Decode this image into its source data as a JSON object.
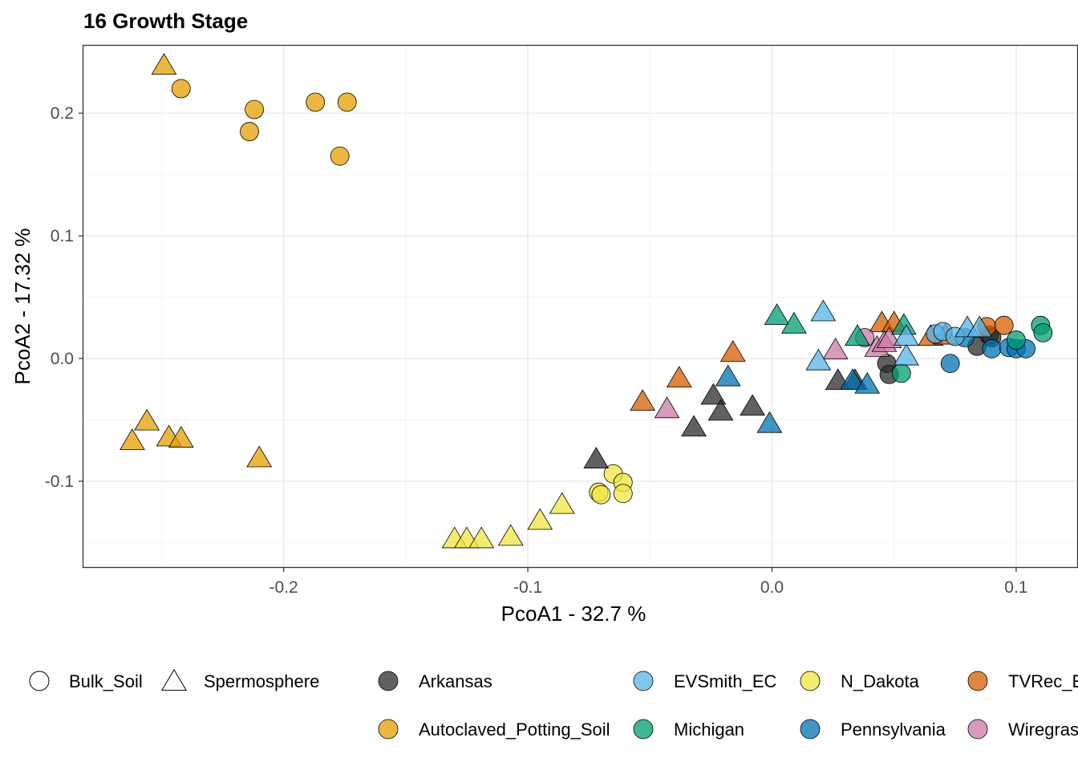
{
  "chart_data": {
    "type": "scatter",
    "title": "16 Growth Stage",
    "xlabel": "PcoA1 - 32.7 %",
    "ylabel": "PcoA2 - 17.32 %",
    "xlim": [
      -0.282,
      0.125
    ],
    "ylim": [
      -0.17,
      0.255
    ],
    "x_ticks": [
      -0.2,
      -0.1,
      0.0,
      0.1
    ],
    "x_tick_labels": [
      "-0.2",
      "-0.1",
      "0.0",
      "0.1"
    ],
    "y_ticks": [
      -0.1,
      0.0,
      0.1,
      0.2
    ],
    "y_tick_labels": [
      "-0.1",
      "0.0",
      "0.1",
      "0.2"
    ],
    "grid": true,
    "legend_position": "bottom",
    "shape_legend": [
      {
        "name": "Bulk_Soil",
        "shape": "circle"
      },
      {
        "name": "Spermosphere",
        "shape": "triangle"
      }
    ],
    "color_legend": [
      {
        "name": "Arkansas",
        "color": "#2b2b2b"
      },
      {
        "name": "Autoclaved_Potting_Soil",
        "color": "#e69f00"
      },
      {
        "name": "EVSmith_EC",
        "color": "#56b4e9"
      },
      {
        "name": "Michigan",
        "color": "#009e73"
      },
      {
        "name": "N_Dakota",
        "color": "#f0e442"
      },
      {
        "name": "Pennsylvania",
        "color": "#0072b2"
      },
      {
        "name": "TVRec_E",
        "color": "#d55e00"
      },
      {
        "name": "Wiregras",
        "color": "#cc79a7"
      }
    ],
    "series": [
      {
        "name": "Autoclaved_Potting_Soil",
        "color": "#e69f00",
        "points": [
          {
            "x": -0.249,
            "y": 0.238,
            "shape": "triangle"
          },
          {
            "x": -0.242,
            "y": 0.22,
            "shape": "circle"
          },
          {
            "x": -0.212,
            "y": 0.203,
            "shape": "circle"
          },
          {
            "x": -0.214,
            "y": 0.185,
            "shape": "circle"
          },
          {
            "x": -0.187,
            "y": 0.209,
            "shape": "circle"
          },
          {
            "x": -0.174,
            "y": 0.209,
            "shape": "circle"
          },
          {
            "x": -0.177,
            "y": 0.165,
            "shape": "circle"
          },
          {
            "x": -0.256,
            "y": -0.052,
            "shape": "triangle"
          },
          {
            "x": -0.262,
            "y": -0.068,
            "shape": "triangle"
          },
          {
            "x": -0.247,
            "y": -0.065,
            "shape": "triangle"
          },
          {
            "x": -0.242,
            "y": -0.066,
            "shape": "triangle"
          },
          {
            "x": -0.21,
            "y": -0.082,
            "shape": "triangle"
          }
        ]
      },
      {
        "name": "N_Dakota",
        "color": "#f0e442",
        "points": [
          {
            "x": -0.13,
            "y": -0.148,
            "shape": "triangle"
          },
          {
            "x": -0.125,
            "y": -0.148,
            "shape": "triangle"
          },
          {
            "x": -0.119,
            "y": -0.148,
            "shape": "triangle"
          },
          {
            "x": -0.107,
            "y": -0.146,
            "shape": "triangle"
          },
          {
            "x": -0.095,
            "y": -0.133,
            "shape": "triangle"
          },
          {
            "x": -0.086,
            "y": -0.12,
            "shape": "triangle"
          },
          {
            "x": -0.065,
            "y": -0.094,
            "shape": "circle"
          },
          {
            "x": -0.061,
            "y": -0.101,
            "shape": "circle"
          },
          {
            "x": -0.071,
            "y": -0.109,
            "shape": "circle"
          },
          {
            "x": -0.07,
            "y": -0.111,
            "shape": "circle"
          },
          {
            "x": -0.061,
            "y": -0.11,
            "shape": "circle"
          }
        ]
      },
      {
        "name": "Arkansas",
        "color": "#2b2b2b",
        "points": [
          {
            "x": -0.072,
            "y": -0.083,
            "shape": "triangle"
          },
          {
            "x": -0.032,
            "y": -0.057,
            "shape": "triangle"
          },
          {
            "x": -0.024,
            "y": -0.031,
            "shape": "triangle"
          },
          {
            "x": -0.021,
            "y": -0.044,
            "shape": "triangle"
          },
          {
            "x": -0.008,
            "y": -0.04,
            "shape": "triangle"
          },
          {
            "x": 0.027,
            "y": -0.019,
            "shape": "triangle"
          },
          {
            "x": 0.034,
            "y": -0.019,
            "shape": "triangle"
          },
          {
            "x": 0.047,
            "y": -0.004,
            "shape": "circle"
          },
          {
            "x": 0.048,
            "y": -0.013,
            "shape": "circle"
          },
          {
            "x": 0.084,
            "y": 0.01,
            "shape": "circle"
          },
          {
            "x": 0.089,
            "y": 0.019,
            "shape": "circle"
          },
          {
            "x": 0.09,
            "y": 0.017,
            "shape": "circle"
          }
        ]
      },
      {
        "name": "TVRec_E",
        "color": "#d55e00",
        "points": [
          {
            "x": -0.053,
            "y": -0.036,
            "shape": "triangle"
          },
          {
            "x": -0.038,
            "y": -0.017,
            "shape": "triangle"
          },
          {
            "x": -0.016,
            "y": 0.004,
            "shape": "triangle"
          },
          {
            "x": 0.045,
            "y": 0.028,
            "shape": "triangle"
          },
          {
            "x": 0.05,
            "y": 0.028,
            "shape": "triangle"
          },
          {
            "x": 0.065,
            "y": 0.017,
            "shape": "triangle"
          },
          {
            "x": 0.071,
            "y": 0.018,
            "shape": "triangle"
          },
          {
            "x": 0.088,
            "y": 0.026,
            "shape": "circle"
          },
          {
            "x": 0.095,
            "y": 0.027,
            "shape": "circle"
          }
        ]
      },
      {
        "name": "Wiregras",
        "color": "#cc79a7",
        "points": [
          {
            "x": -0.043,
            "y": -0.042,
            "shape": "triangle"
          },
          {
            "x": 0.026,
            "y": 0.006,
            "shape": "triangle"
          },
          {
            "x": 0.043,
            "y": 0.008,
            "shape": "triangle"
          },
          {
            "x": 0.046,
            "y": 0.012,
            "shape": "triangle"
          },
          {
            "x": 0.048,
            "y": 0.015,
            "shape": "triangle"
          },
          {
            "x": 0.038,
            "y": 0.017,
            "shape": "circle"
          }
        ]
      },
      {
        "name": "Pennsylvania",
        "color": "#0072b2",
        "points": [
          {
            "x": -0.018,
            "y": -0.016,
            "shape": "triangle"
          },
          {
            "x": -0.001,
            "y": -0.054,
            "shape": "triangle"
          },
          {
            "x": 0.033,
            "y": -0.019,
            "shape": "triangle"
          },
          {
            "x": 0.039,
            "y": -0.022,
            "shape": "triangle"
          },
          {
            "x": 0.073,
            "y": -0.004,
            "shape": "circle"
          },
          {
            "x": 0.079,
            "y": 0.017,
            "shape": "circle"
          },
          {
            "x": 0.09,
            "y": 0.008,
            "shape": "circle"
          },
          {
            "x": 0.097,
            "y": 0.009,
            "shape": "circle"
          },
          {
            "x": 0.1,
            "y": 0.008,
            "shape": "circle"
          },
          {
            "x": 0.104,
            "y": 0.008,
            "shape": "circle"
          }
        ]
      },
      {
        "name": "Michigan",
        "color": "#009e73",
        "points": [
          {
            "x": 0.002,
            "y": 0.034,
            "shape": "triangle"
          },
          {
            "x": 0.009,
            "y": 0.027,
            "shape": "triangle"
          },
          {
            "x": 0.035,
            "y": 0.017,
            "shape": "triangle"
          },
          {
            "x": 0.054,
            "y": 0.026,
            "shape": "triangle"
          },
          {
            "x": 0.053,
            "y": -0.012,
            "shape": "circle"
          },
          {
            "x": 0.1,
            "y": 0.015,
            "shape": "circle"
          },
          {
            "x": 0.11,
            "y": 0.027,
            "shape": "circle"
          },
          {
            "x": 0.111,
            "y": 0.021,
            "shape": "circle"
          }
        ]
      },
      {
        "name": "EVSmith_EC",
        "color": "#56b4e9",
        "points": [
          {
            "x": 0.021,
            "y": 0.037,
            "shape": "triangle"
          },
          {
            "x": 0.019,
            "y": -0.003,
            "shape": "triangle"
          },
          {
            "x": 0.055,
            "y": 0.001,
            "shape": "triangle"
          },
          {
            "x": 0.055,
            "y": 0.017,
            "shape": "triangle"
          },
          {
            "x": 0.067,
            "y": 0.02,
            "shape": "circle"
          },
          {
            "x": 0.07,
            "y": 0.022,
            "shape": "circle"
          },
          {
            "x": 0.075,
            "y": 0.018,
            "shape": "circle"
          },
          {
            "x": 0.08,
            "y": 0.024,
            "shape": "triangle"
          },
          {
            "x": 0.085,
            "y": 0.024,
            "shape": "triangle"
          }
        ]
      }
    ]
  }
}
